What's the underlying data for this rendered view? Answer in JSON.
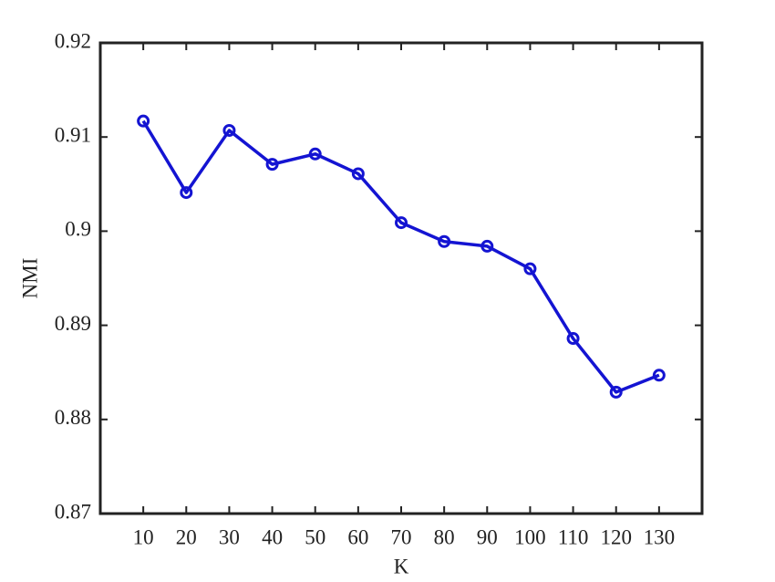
{
  "chart_data": {
    "type": "line",
    "x_label": "K",
    "y_label": "NMI",
    "x": [
      10,
      20,
      30,
      40,
      50,
      60,
      70,
      80,
      90,
      100,
      110,
      120,
      130
    ],
    "values": [
      0.9117,
      0.9041,
      0.9107,
      0.9071,
      0.9082,
      0.9061,
      0.9009,
      0.8989,
      0.8984,
      0.896,
      0.8886,
      0.8829,
      0.8847
    ],
    "color": "#1414d2",
    "xlim": [
      0,
      140
    ],
    "xticks": [
      10,
      20,
      30,
      40,
      50,
      60,
      70,
      80,
      90,
      100,
      110,
      120,
      130
    ],
    "ylim": [
      0.87,
      0.92
    ],
    "yticks": [
      0.87,
      0.88,
      0.89,
      0.9,
      0.91,
      0.92
    ],
    "markers": true
  }
}
